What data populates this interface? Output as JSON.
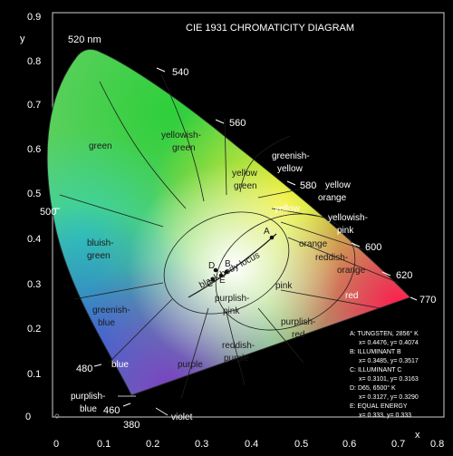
{
  "title": "CIE 1931 CHROMATICITY DIAGRAM",
  "axes": {
    "y_label": "y",
    "x_label": "x",
    "y_ticks": [
      "0.9",
      "0.8",
      "0.7",
      "0.6",
      "0.5",
      "0.4",
      "0.3",
      "0.2",
      "0.1",
      "0"
    ],
    "x_ticks": [
      "0",
      "0.1",
      "0.2",
      "0.3",
      "0.4",
      "0.5",
      "0.6",
      "0.7",
      "0.8"
    ]
  },
  "wavelengths": [
    "520 nm",
    "540",
    "560",
    "580",
    "600",
    "620",
    "770",
    "500",
    "480",
    "460",
    "380"
  ],
  "regions": {
    "green": "green",
    "yellowish_green_1": "yellowish-",
    "yellowish_green_2": "green",
    "yellow_green_1": "yellow",
    "yellow_green_2": "green",
    "greenish_yellow_1": "greenish-",
    "greenish_yellow_2": "yellow",
    "yellow": "yellow",
    "yellow_orange_1": "yellow",
    "yellow_orange_2": "orange",
    "yellowish_pink_1": "yellowish-",
    "yellowish_pink_2": "pink",
    "orange": "orange",
    "reddish_orange_1": "reddish-",
    "reddish_orange_2": "orange",
    "pink": "pink",
    "red": "red",
    "bluish_green_1": "bluish-",
    "bluish_green_2": "green",
    "greenish_blue_1": "greenish-",
    "greenish_blue_2": "blue",
    "blue": "blue",
    "purple": "purple",
    "purplish_pink_1": "purplish-",
    "purplish_pink_2": "pink",
    "reddish_purple_1": "reddish-",
    "reddish_purple_2": "purple",
    "purplish_red_1": "purplish-",
    "purplish_red_2": "red",
    "purplish_blue_1": "purplish-",
    "purplish_blue_2": "blue",
    "violet": "violet",
    "black_body_locus": "black body locus"
  },
  "points": [
    "A",
    "B",
    "C",
    "D",
    "E"
  ],
  "legend": [
    "A:  TUNGSTEN, 2856° K",
    "x= 0.4476, y= 0.4074",
    "B:  ILLUMINANT B",
    "x= 0.3485, y= 0.3517",
    "C:  ILLUMINANT C",
    "x= 0.3101, y= 0.3163",
    "D:  D65, 6500° K",
    "x= 0.3127, y= 0.3290",
    "E:  EQUAL ENERGY",
    "x= 0.333, y= 0.333"
  ],
  "colors": {
    "background": "#000000",
    "green": "#3ec03a",
    "red": "#ff2a55",
    "blue": "#2a6bd6",
    "purple": "#8a4bb8"
  }
}
